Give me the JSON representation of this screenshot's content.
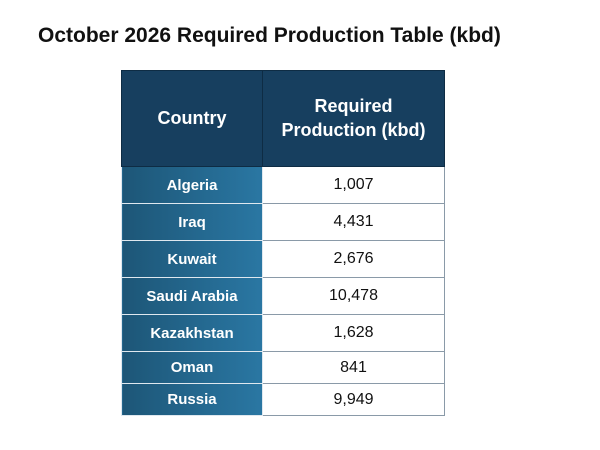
{
  "header": {
    "title": "October 2026 Required Production Table (kbd)"
  },
  "table": {
    "columns": [
      "Country",
      "Required Production (kbd)"
    ],
    "rows": [
      [
        "Algeria",
        "1,007"
      ],
      [
        "Iraq",
        "4,431"
      ],
      [
        "Kuwait",
        "2,676"
      ],
      [
        "Saudi Arabia",
        "10,478"
      ],
      [
        "Kazakhstan",
        "1,628"
      ],
      [
        "Oman",
        "841"
      ],
      [
        "Russia",
        "9,949"
      ]
    ]
  }
}
